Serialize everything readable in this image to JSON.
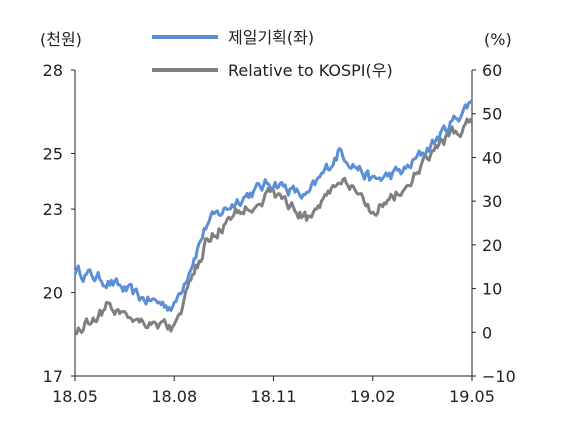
{
  "chart_data": {
    "type": "line",
    "left_axis_unit": "(천원)",
    "right_axis_unit": "(%)",
    "x_ticks": [
      "18.05",
      "18.08",
      "18.11",
      "19.02",
      "19.05"
    ],
    "y_left_ticks": [
      "17",
      "20",
      "23",
      "25",
      "28"
    ],
    "y_right_ticks": [
      "−10",
      "0",
      "10",
      "20",
      "30",
      "40",
      "50",
      "60"
    ],
    "y_left_lim": [
      17,
      28
    ],
    "y_right_lim": [
      -10,
      60
    ],
    "legend_position": "top-center",
    "series": [
      {
        "name": "제일기획(좌)",
        "axis": "left",
        "color": "#5B8FD6",
        "x": [
          "18.05",
          "18.06",
          "18.07",
          "18.08",
          "18.09",
          "18.10",
          "18.11",
          "18.12",
          "19.01",
          "19.02",
          "19.03",
          "19.04",
          "19.05"
        ],
        "values": [
          20.8,
          20.4,
          19.8,
          19.5,
          22.5,
          23.4,
          24.0,
          23.4,
          25.1,
          24.0,
          24.4,
          25.6,
          26.9
        ]
      },
      {
        "name": "Relative to KOSPI(우)",
        "axis": "right",
        "color": "#7F7F7F",
        "x": [
          "18.05",
          "18.06",
          "18.07",
          "18.08",
          "18.09",
          "18.10",
          "18.11",
          "18.12",
          "19.01",
          "19.02",
          "19.03",
          "19.04",
          "19.05"
        ],
        "values": [
          0,
          6,
          3,
          1,
          21,
          28,
          32,
          26,
          35,
          28,
          33,
          43,
          48
        ]
      }
    ]
  }
}
